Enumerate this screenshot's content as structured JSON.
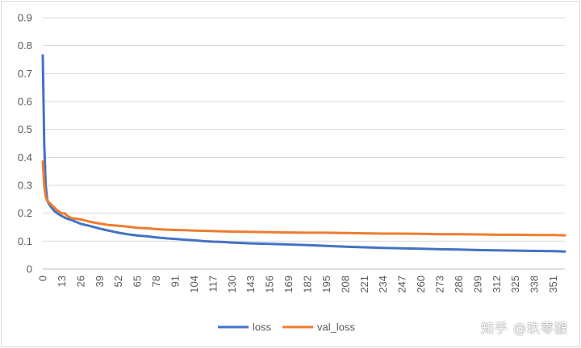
{
  "watermark": "知乎 @玖零猴",
  "chart_data": {
    "type": "line",
    "title": "",
    "xlabel": "",
    "ylabel": "",
    "ylim": [
      0,
      0.9
    ],
    "yticks": [
      "0",
      "0.1",
      "0.2",
      "0.3",
      "0.4",
      "0.5",
      "0.6",
      "0.7",
      "0.8",
      "0.9"
    ],
    "x_range": [
      0,
      359
    ],
    "xticks": [
      0,
      13,
      26,
      39,
      52,
      65,
      78,
      91,
      104,
      117,
      130,
      143,
      156,
      169,
      182,
      195,
      208,
      221,
      234,
      247,
      260,
      273,
      286,
      299,
      312,
      325,
      338,
      351
    ],
    "grid": true,
    "legend_position": "bottom",
    "series": [
      {
        "name": "loss",
        "color": "#4472c4",
        "points": [
          [
            0,
            0.765
          ],
          [
            1,
            0.45
          ],
          [
            2,
            0.3
          ],
          [
            3,
            0.25
          ],
          [
            4,
            0.235
          ],
          [
            6,
            0.22
          ],
          [
            8,
            0.208
          ],
          [
            10,
            0.2
          ],
          [
            13,
            0.19
          ],
          [
            16,
            0.182
          ],
          [
            20,
            0.175
          ],
          [
            26,
            0.162
          ],
          [
            32,
            0.155
          ],
          [
            39,
            0.145
          ],
          [
            45,
            0.138
          ],
          [
            52,
            0.13
          ],
          [
            58,
            0.125
          ],
          [
            65,
            0.12
          ],
          [
            72,
            0.117
          ],
          [
            78,
            0.113
          ],
          [
            85,
            0.11
          ],
          [
            91,
            0.108
          ],
          [
            98,
            0.105
          ],
          [
            104,
            0.103
          ],
          [
            110,
            0.1
          ],
          [
            117,
            0.098
          ],
          [
            124,
            0.097
          ],
          [
            130,
            0.095
          ],
          [
            143,
            0.092
          ],
          [
            156,
            0.09
          ],
          [
            169,
            0.088
          ],
          [
            182,
            0.086
          ],
          [
            195,
            0.083
          ],
          [
            208,
            0.08
          ],
          [
            221,
            0.078
          ],
          [
            234,
            0.076
          ],
          [
            247,
            0.074
          ],
          [
            260,
            0.073
          ],
          [
            273,
            0.071
          ],
          [
            286,
            0.07
          ],
          [
            299,
            0.068
          ],
          [
            312,
            0.067
          ],
          [
            325,
            0.066
          ],
          [
            338,
            0.065
          ],
          [
            351,
            0.064
          ],
          [
            359,
            0.063
          ]
        ]
      },
      {
        "name": "val_loss",
        "color": "#ed7d31",
        "points": [
          [
            0,
            0.385
          ],
          [
            1,
            0.3
          ],
          [
            2,
            0.26
          ],
          [
            3,
            0.245
          ],
          [
            5,
            0.235
          ],
          [
            7,
            0.225
          ],
          [
            10,
            0.21
          ],
          [
            13,
            0.2
          ],
          [
            15,
            0.2
          ],
          [
            17,
            0.19
          ],
          [
            20,
            0.182
          ],
          [
            26,
            0.178
          ],
          [
            32,
            0.17
          ],
          [
            39,
            0.163
          ],
          [
            45,
            0.158
          ],
          [
            52,
            0.155
          ],
          [
            58,
            0.152
          ],
          [
            65,
            0.148
          ],
          [
            72,
            0.146
          ],
          [
            78,
            0.143
          ],
          [
            85,
            0.141
          ],
          [
            91,
            0.14
          ],
          [
            98,
            0.139
          ],
          [
            104,
            0.138
          ],
          [
            110,
            0.137
          ],
          [
            117,
            0.136
          ],
          [
            130,
            0.134
          ],
          [
            143,
            0.133
          ],
          [
            156,
            0.132
          ],
          [
            169,
            0.131
          ],
          [
            182,
            0.13
          ],
          [
            195,
            0.13
          ],
          [
            208,
            0.129
          ],
          [
            221,
            0.128
          ],
          [
            234,
            0.127
          ],
          [
            247,
            0.127
          ],
          [
            260,
            0.126
          ],
          [
            273,
            0.125
          ],
          [
            286,
            0.125
          ],
          [
            299,
            0.124
          ],
          [
            312,
            0.123
          ],
          [
            325,
            0.123
          ],
          [
            338,
            0.122
          ],
          [
            351,
            0.122
          ],
          [
            359,
            0.121
          ]
        ]
      }
    ]
  }
}
